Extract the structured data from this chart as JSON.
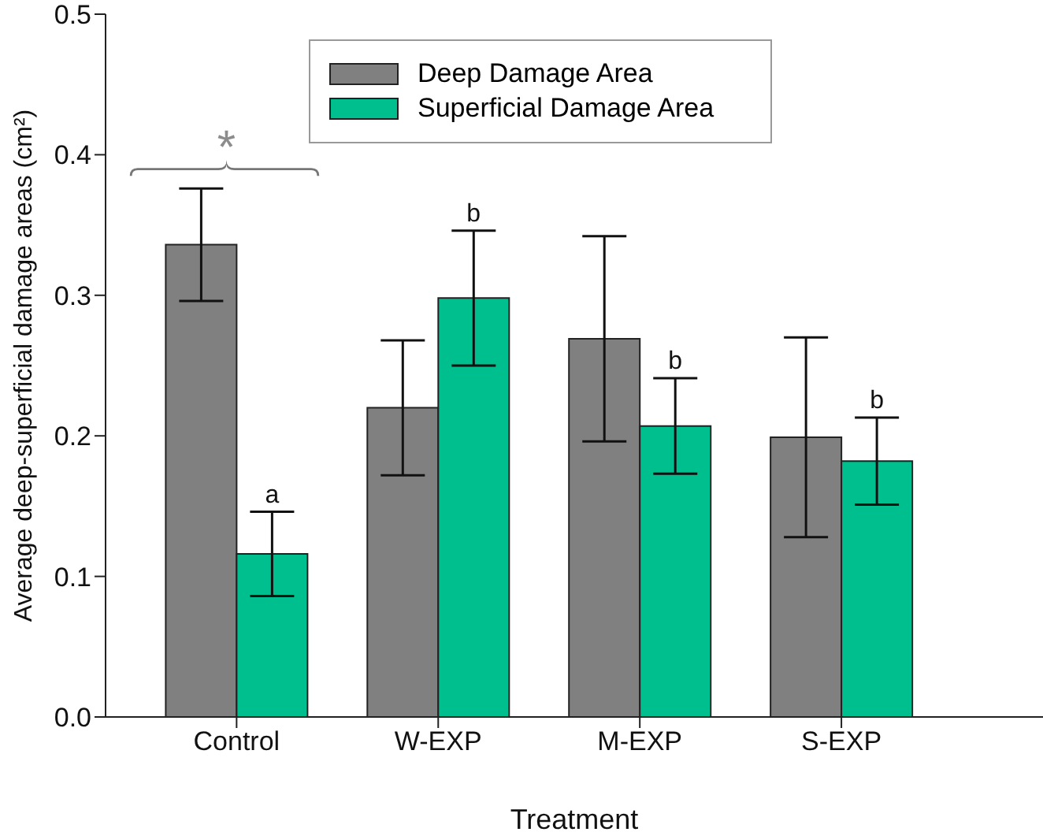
{
  "chart_data": {
    "type": "bar",
    "xlabel": "Treatment",
    "ylabel": "Average deep-superficial damage areas (cm²)",
    "categories": [
      "Control",
      "W-EXP",
      "M-EXP",
      "S-EXP"
    ],
    "series": [
      {
        "name": "Deep Damage Area",
        "color": "#808080",
        "values": [
          0.336,
          0.22,
          0.269,
          0.199
        ],
        "errors": [
          0.04,
          0.048,
          0.073,
          0.071
        ]
      },
      {
        "name": "Superficial Damage Area",
        "color": "#00bf8f",
        "values": [
          0.116,
          0.298,
          0.207,
          0.182
        ],
        "errors": [
          0.03,
          0.048,
          0.034,
          0.031
        ]
      }
    ],
    "ylim": [
      0,
      0.5
    ],
    "yticks": [
      {
        "value": 0,
        "label": "0.0"
      },
      {
        "value": 0.1,
        "label": "0.1"
      },
      {
        "value": 0.2,
        "label": "0.2"
      },
      {
        "value": 0.3,
        "label": "0.3"
      },
      {
        "value": 0.4,
        "label": "0.4"
      },
      {
        "value": 0.5,
        "label": "0.5"
      }
    ],
    "annotations": [
      "*",
      "a",
      "b",
      "b",
      "b"
    ],
    "legend": "top",
    "grid": false
  }
}
